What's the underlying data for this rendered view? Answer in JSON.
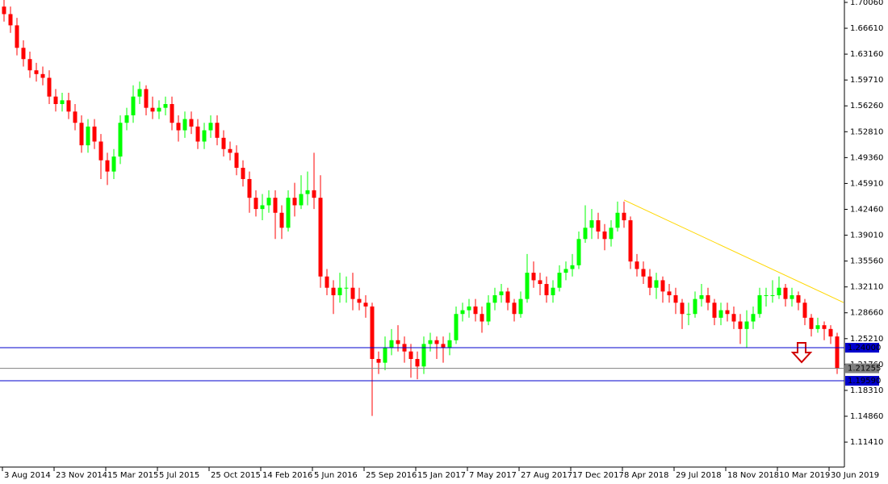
{
  "chart_data": {
    "type": "candlestick",
    "up_color": "#00ff00",
    "down_color": "#ff0000",
    "open": [
      1.695,
      1.685,
      1.67,
      1.64,
      1.625,
      1.61,
      1.605,
      1.6,
      1.575,
      1.565,
      1.57,
      1.555,
      1.54,
      1.51,
      1.535,
      1.515,
      1.49,
      1.475,
      1.495,
      1.54,
      1.55,
      1.575,
      1.585,
      1.56,
      1.555,
      1.56,
      1.565,
      1.54,
      1.53,
      1.545,
      1.535,
      1.515,
      1.53,
      1.54,
      1.52,
      1.505,
      1.5,
      1.48,
      1.465,
      1.44,
      1.425,
      1.43,
      1.44,
      1.42,
      1.4,
      1.44,
      1.43,
      1.445,
      1.45,
      1.44,
      1.335,
      1.32,
      1.31,
      1.32,
      1.32,
      1.305,
      1.3,
      1.295,
      1.225,
      1.22,
      1.24,
      1.25,
      1.245,
      1.235,
      1.225,
      1.215,
      1.245,
      1.25,
      1.245,
      1.24,
      1.25,
      1.285,
      1.29,
      1.295,
      1.285,
      1.275,
      1.3,
      1.31,
      1.315,
      1.3,
      1.285,
      1.305,
      1.34,
      1.33,
      1.325,
      1.31,
      1.32,
      1.34,
      1.345,
      1.35,
      1.385,
      1.4,
      1.41,
      1.395,
      1.385,
      1.4,
      1.42,
      1.41,
      1.355,
      1.345,
      1.335,
      1.32,
      1.33,
      1.315,
      1.31,
      1.3,
      1.285,
      1.285,
      1.305,
      1.31,
      1.3,
      1.28,
      1.29,
      1.285,
      1.275,
      1.265,
      1.275,
      1.285,
      1.31,
      1.31,
      1.31,
      1.32,
      1.305,
      1.31,
      1.3,
      1.28,
      1.265,
      1.27,
      1.265,
      1.255
    ],
    "high": [
      1.705,
      1.695,
      1.68,
      1.65,
      1.635,
      1.62,
      1.615,
      1.61,
      1.585,
      1.58,
      1.58,
      1.565,
      1.55,
      1.545,
      1.545,
      1.525,
      1.5,
      1.505,
      1.55,
      1.56,
      1.59,
      1.595,
      1.59,
      1.575,
      1.57,
      1.575,
      1.575,
      1.55,
      1.555,
      1.555,
      1.545,
      1.54,
      1.55,
      1.55,
      1.53,
      1.515,
      1.51,
      1.49,
      1.475,
      1.45,
      1.445,
      1.45,
      1.45,
      1.43,
      1.45,
      1.46,
      1.47,
      1.475,
      1.5,
      1.47,
      1.345,
      1.33,
      1.34,
      1.335,
      1.34,
      1.32,
      1.31,
      1.3,
      1.235,
      1.255,
      1.265,
      1.27,
      1.255,
      1.245,
      1.235,
      1.255,
      1.26,
      1.255,
      1.255,
      1.26,
      1.295,
      1.3,
      1.305,
      1.305,
      1.295,
      1.31,
      1.32,
      1.325,
      1.32,
      1.305,
      1.315,
      1.365,
      1.355,
      1.34,
      1.335,
      1.33,
      1.35,
      1.355,
      1.365,
      1.395,
      1.43,
      1.425,
      1.42,
      1.405,
      1.41,
      1.435,
      1.435,
      1.415,
      1.365,
      1.355,
      1.345,
      1.34,
      1.335,
      1.325,
      1.32,
      1.305,
      1.3,
      1.315,
      1.325,
      1.32,
      1.305,
      1.3,
      1.3,
      1.295,
      1.285,
      1.29,
      1.295,
      1.32,
      1.32,
      1.33,
      1.335,
      1.325,
      1.32,
      1.315,
      1.305,
      1.285,
      1.28,
      1.275,
      1.27,
      1.26
    ],
    "low": [
      1.675,
      1.66,
      1.63,
      1.615,
      1.6,
      1.595,
      1.59,
      1.565,
      1.555,
      1.555,
      1.545,
      1.53,
      1.5,
      1.5,
      1.505,
      1.465,
      1.457,
      1.465,
      1.485,
      1.53,
      1.54,
      1.565,
      1.55,
      1.545,
      1.545,
      1.55,
      1.53,
      1.515,
      1.52,
      1.525,
      1.505,
      1.505,
      1.52,
      1.51,
      1.495,
      1.49,
      1.47,
      1.455,
      1.42,
      1.415,
      1.41,
      1.42,
      1.385,
      1.385,
      1.395,
      1.415,
      1.425,
      1.43,
      1.425,
      1.32,
      1.31,
      1.285,
      1.3,
      1.3,
      1.29,
      1.29,
      1.28,
      1.149,
      1.205,
      1.21,
      1.23,
      1.235,
      1.22,
      1.2,
      1.198,
      1.205,
      1.235,
      1.225,
      1.22,
      1.23,
      1.245,
      1.275,
      1.28,
      1.275,
      1.26,
      1.27,
      1.29,
      1.3,
      1.29,
      1.275,
      1.28,
      1.3,
      1.32,
      1.31,
      1.3,
      1.3,
      1.315,
      1.33,
      1.335,
      1.345,
      1.38,
      1.385,
      1.385,
      1.37,
      1.375,
      1.395,
      1.4,
      1.345,
      1.335,
      1.325,
      1.31,
      1.305,
      1.3,
      1.3,
      1.285,
      1.265,
      1.27,
      1.28,
      1.295,
      1.29,
      1.27,
      1.27,
      1.275,
      1.265,
      1.245,
      1.24,
      1.265,
      1.28,
      1.295,
      1.3,
      1.305,
      1.295,
      1.295,
      1.29,
      1.27,
      1.255,
      1.26,
      1.25,
      1.245,
      1.205
    ],
    "close": [
      1.685,
      1.67,
      1.64,
      1.625,
      1.61,
      1.605,
      1.6,
      1.575,
      1.565,
      1.57,
      1.555,
      1.54,
      1.51,
      1.535,
      1.515,
      1.49,
      1.475,
      1.495,
      1.54,
      1.55,
      1.575,
      1.585,
      1.56,
      1.555,
      1.56,
      1.565,
      1.54,
      1.53,
      1.545,
      1.535,
      1.515,
      1.53,
      1.54,
      1.52,
      1.505,
      1.5,
      1.48,
      1.465,
      1.44,
      1.425,
      1.43,
      1.44,
      1.42,
      1.4,
      1.44,
      1.43,
      1.445,
      1.45,
      1.44,
      1.335,
      1.32,
      1.31,
      1.32,
      1.32,
      1.305,
      1.3,
      1.295,
      1.225,
      1.22,
      1.24,
      1.25,
      1.245,
      1.235,
      1.225,
      1.215,
      1.245,
      1.25,
      1.245,
      1.24,
      1.25,
      1.285,
      1.29,
      1.295,
      1.285,
      1.275,
      1.3,
      1.31,
      1.315,
      1.3,
      1.285,
      1.305,
      1.34,
      1.33,
      1.325,
      1.31,
      1.32,
      1.34,
      1.345,
      1.35,
      1.385,
      1.4,
      1.41,
      1.395,
      1.385,
      1.4,
      1.42,
      1.41,
      1.355,
      1.345,
      1.335,
      1.32,
      1.33,
      1.315,
      1.31,
      1.3,
      1.285,
      1.285,
      1.305,
      1.31,
      1.3,
      1.28,
      1.29,
      1.285,
      1.275,
      1.265,
      1.275,
      1.285,
      1.31,
      1.31,
      1.31,
      1.32,
      1.305,
      1.31,
      1.3,
      1.28,
      1.265,
      1.27,
      1.265,
      1.255,
      1.2125
    ],
    "ylim": [
      1.0819,
      1.7038
    ],
    "yticks": [
      {
        "value": 1.7006,
        "label": "1.70060"
      },
      {
        "value": 1.6661,
        "label": "1.66610"
      },
      {
        "value": 1.6316,
        "label": "1.63160"
      },
      {
        "value": 1.5971,
        "label": "1.59710"
      },
      {
        "value": 1.5626,
        "label": "1.56260"
      },
      {
        "value": 1.5281,
        "label": "1.52810"
      },
      {
        "value": 1.4936,
        "label": "1.49360"
      },
      {
        "value": 1.4591,
        "label": "1.45910"
      },
      {
        "value": 1.4246,
        "label": "1.42460"
      },
      {
        "value": 1.3901,
        "label": "1.39010"
      },
      {
        "value": 1.3556,
        "label": "1.35560"
      },
      {
        "value": 1.3211,
        "label": "1.32110"
      },
      {
        "value": 1.2866,
        "label": "1.28660"
      },
      {
        "value": 1.2521,
        "label": "1.25210"
      },
      {
        "value": 1.2176,
        "label": "1.21760"
      },
      {
        "value": 1.1831,
        "label": "1.18310"
      },
      {
        "value": 1.1486,
        "label": "1.14860"
      },
      {
        "value": 1.1141,
        "label": "1.11410"
      }
    ],
    "xticks": [
      {
        "value": 0,
        "label": "3 Aug 2014"
      },
      {
        "value": 8,
        "label": "23 Nov 2014"
      },
      {
        "value": 16,
        "label": "15 Mar 2015"
      },
      {
        "value": 24,
        "label": "5 Jul 2015"
      },
      {
        "value": 32,
        "label": "25 Oct 2015"
      },
      {
        "value": 40,
        "label": "14 Feb 2016"
      },
      {
        "value": 48,
        "label": "5 Jun 2016"
      },
      {
        "value": 56,
        "label": "25 Sep 2016"
      },
      {
        "value": 64,
        "label": "15 Jan 2017"
      },
      {
        "value": 72,
        "label": "7 May 2017"
      },
      {
        "value": 80,
        "label": "27 Aug 2017"
      },
      {
        "value": 88,
        "label": "17 Dec 2017"
      },
      {
        "value": 96,
        "label": "8 Apr 2018"
      },
      {
        "value": 104,
        "label": "29 Jul 2018"
      },
      {
        "value": 112,
        "label": "18 Nov 2018"
      },
      {
        "value": 120,
        "label": "10 Mar 2019"
      },
      {
        "value": 128,
        "label": "30 Jun 2019"
      }
    ],
    "levels": [
      {
        "value": 1.24,
        "label": "1.24000",
        "color": "#0000cd"
      },
      {
        "value": 1.21255,
        "label": "1.21255",
        "color": "#808080"
      },
      {
        "value": 1.1959,
        "label": "1.19590",
        "color": "#0000cd"
      }
    ],
    "trendline": {
      "x": [
        96,
        130
      ],
      "y": [
        1.437,
        1.3003
      ],
      "color": "#ffd700"
    }
  }
}
